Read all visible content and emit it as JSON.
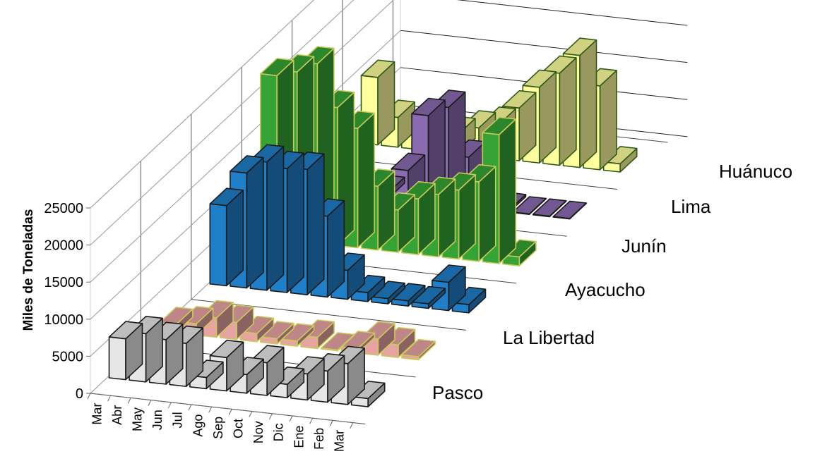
{
  "chart_data": {
    "type": "bar",
    "subtype": "3d-column",
    "title": "",
    "ylabel": "Miles de Toneladas",
    "xlabel": "",
    "ylim": [
      0,
      25000
    ],
    "yticks": [
      0,
      5000,
      10000,
      15000,
      20000,
      25000
    ],
    "grid": true,
    "legend": "none",
    "categories": [
      "Mar",
      "Abr",
      "May",
      "Jun",
      "Jul",
      "Ago",
      "Sep",
      "Oct",
      "Nov",
      "Dic",
      "Ene",
      "Feb",
      "Mar"
    ],
    "series": [
      {
        "name": "Pasco",
        "color": "#e6e6e6",
        "values": [
          5500,
          6500,
          6000,
          5800,
          1500,
          4500,
          2500,
          4400,
          1800,
          3500,
          4200,
          5500,
          1100
        ]
      },
      {
        "name": "La Libertad",
        "color": "#e8a3a3",
        "values": [
          1100,
          1500,
          2600,
          2300,
          1100,
          700,
          700,
          1500,
          100,
          600,
          2200,
          1700,
          400
        ]
      },
      {
        "name": "Ayacucho",
        "color": "#1f7fc8",
        "values": [
          10800,
          15500,
          17300,
          16700,
          16900,
          10900,
          3900,
          1200,
          700,
          700,
          600,
          3800,
          1100
        ]
      },
      {
        "name": "Junín",
        "color": "#36a336",
        "values": [
          22000,
          22800,
          24200,
          18600,
          16100,
          8600,
          5700,
          7500,
          8400,
          9300,
          10700,
          17400,
          1200
        ]
      },
      {
        "name": "Lima",
        "color": "#8a6bb0",
        "values": [
          1200,
          1300,
          1200,
          800,
          4100,
          11800,
          13200,
          6800,
          900,
          300,
          0,
          0,
          0
        ]
      },
      {
        "name": "Huánuco",
        "color": "#ffff9e",
        "values": [
          9100,
          4000,
          2100,
          2400,
          2700,
          3800,
          4600,
          7100,
          10200,
          12400,
          15100,
          11300,
          1100
        ]
      }
    ]
  }
}
